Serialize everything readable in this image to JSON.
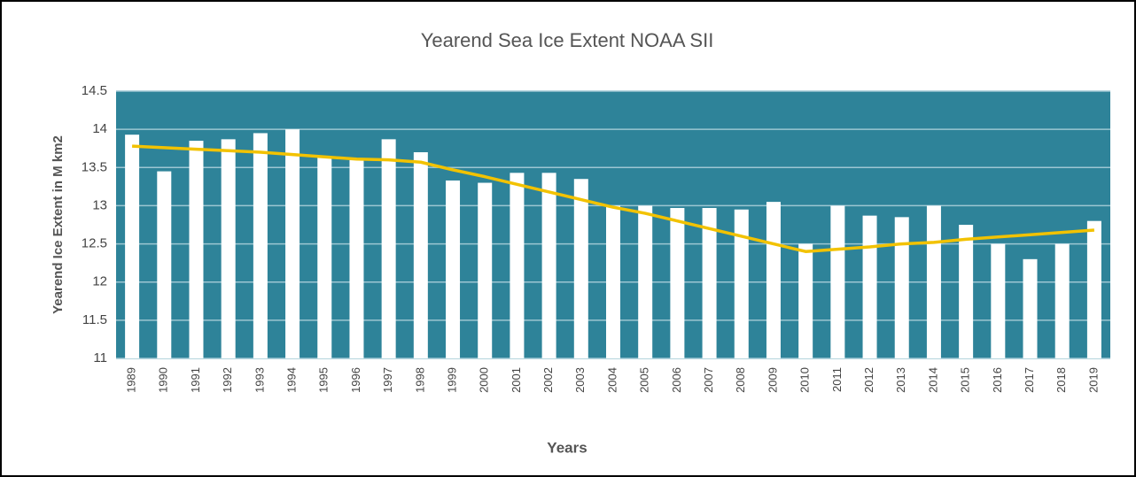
{
  "chart_data": {
    "type": "bar",
    "title": "Yearend Sea Ice Extent NOAA SII",
    "x_label": "Years",
    "y_label": "Yearend Ice Extent in M km2",
    "categories": [
      "1989",
      "1990",
      "1991",
      "1992",
      "1993",
      "1994",
      "1995",
      "1996",
      "1997",
      "1998",
      "1999",
      "2000",
      "2001",
      "2002",
      "2003",
      "2004",
      "2005",
      "2006",
      "2007",
      "2008",
      "2009",
      "2010",
      "2011",
      "2012",
      "2013",
      "2014",
      "2015",
      "2016",
      "2017",
      "2018",
      "2019"
    ],
    "series": [
      {
        "type": "bar",
        "color": "#ffffff",
        "values": [
          13.93,
          13.45,
          13.85,
          13.87,
          13.95,
          14.0,
          13.65,
          13.6,
          13.87,
          13.7,
          13.33,
          13.3,
          13.43,
          13.43,
          13.35,
          13.0,
          13.0,
          12.97,
          12.97,
          12.95,
          13.05,
          12.5,
          13.0,
          12.87,
          12.85,
          13.0,
          12.75,
          12.5,
          12.3,
          12.5,
          12.8
        ]
      },
      {
        "type": "line",
        "color": "#f2c200",
        "values": [
          13.78,
          13.76,
          13.74,
          13.72,
          13.7,
          13.67,
          13.64,
          13.61,
          13.6,
          13.57,
          13.47,
          13.38,
          13.28,
          13.18,
          13.08,
          12.98,
          12.9,
          12.8,
          12.7,
          12.6,
          12.5,
          12.4,
          12.43,
          12.46,
          12.5,
          12.52,
          12.56,
          12.59,
          12.62,
          12.65,
          12.68
        ]
      }
    ],
    "ylim": [
      11,
      14.5
    ],
    "yticks": [
      11,
      11.5,
      12,
      12.5,
      13,
      13.5,
      14,
      14.5
    ],
    "grid": true,
    "plot_background": "#2e8399"
  }
}
